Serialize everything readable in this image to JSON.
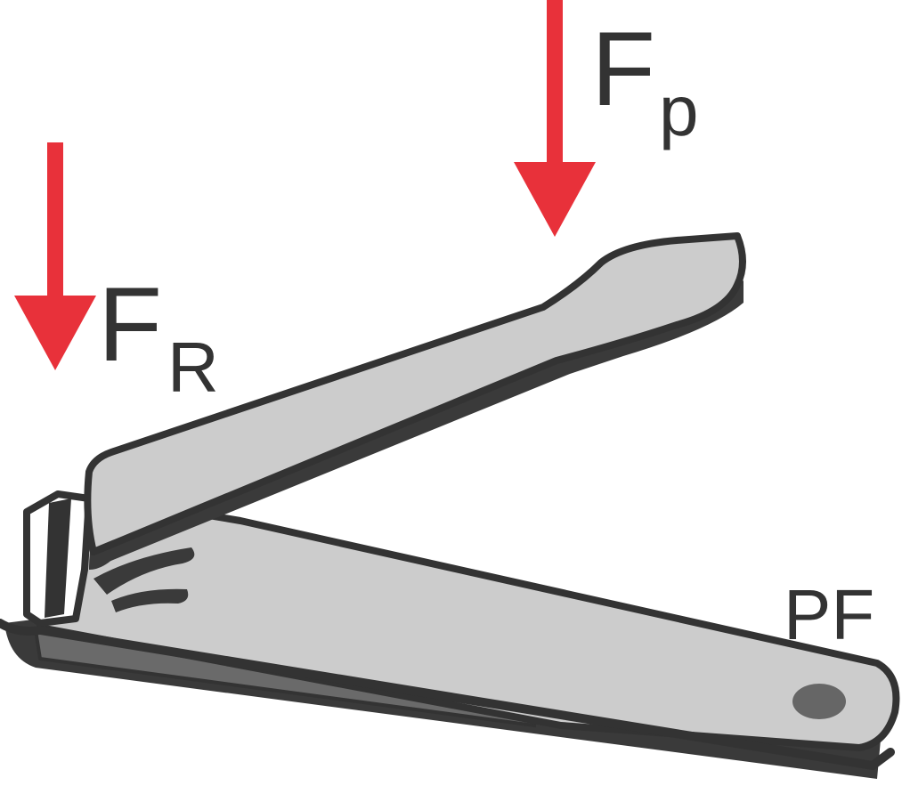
{
  "labels": {
    "force_p_main": "F",
    "force_p_sub": "p",
    "force_r_main": "F",
    "force_r_sub": "R",
    "pivot": "PF"
  },
  "colors": {
    "arrow": "#e8313a",
    "outline": "#333333",
    "metal": "#cccccc",
    "shadow": "#3a3a3a",
    "underside": "#6a6a6a",
    "pivot_dot": "#666666",
    "text": "#333333"
  }
}
